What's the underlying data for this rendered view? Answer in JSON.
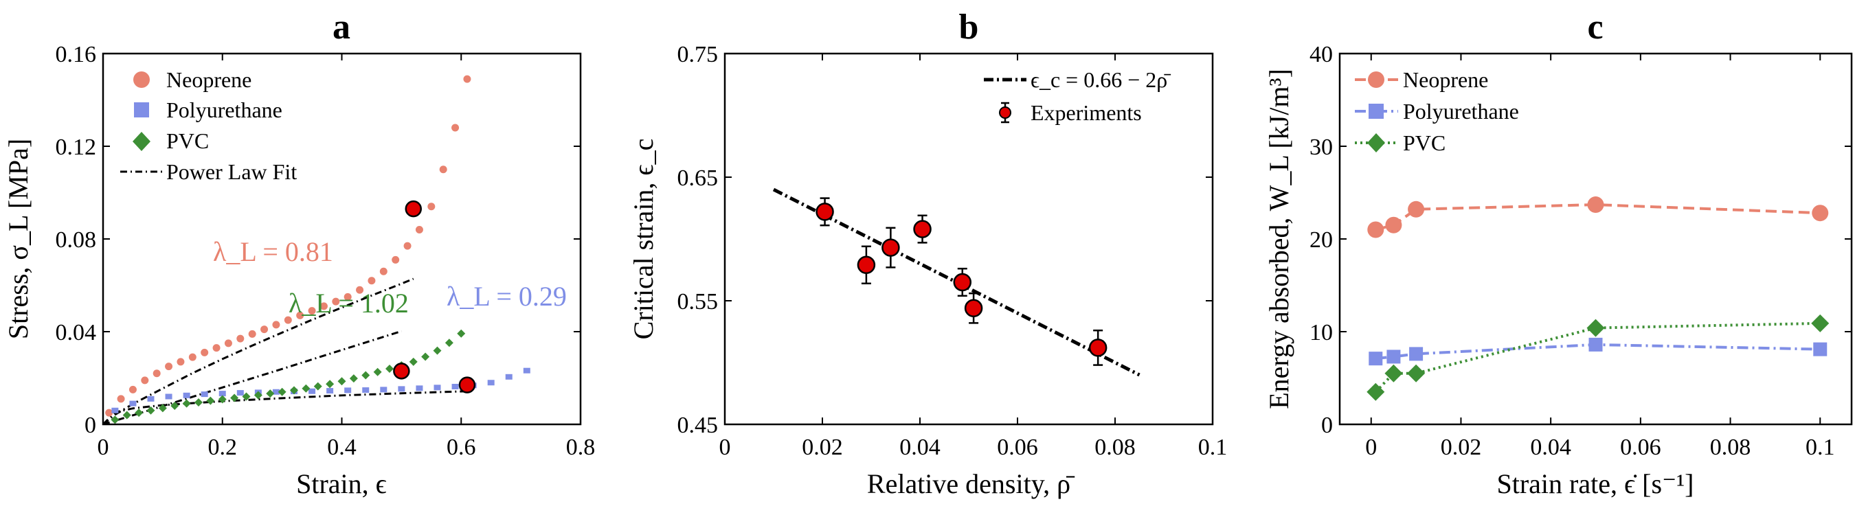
{
  "panels": {
    "a": {
      "title": "a",
      "xlabel": "Strain, ϵ",
      "ylabel": "Stress, σ_L [MPa]",
      "xticks": [
        "0",
        "0.2",
        "0.4",
        "0.6",
        "0.8"
      ],
      "yticks": [
        "0",
        "0.04",
        "0.08",
        "0.12",
        "0.16"
      ],
      "legend": [
        "Neoprene",
        "Polyurethane",
        "PVC",
        "Power Law Fit"
      ],
      "annotations": [
        "λ_L = 0.81",
        "λ_L = 0.29",
        "λ_L = 1.02"
      ]
    },
    "b": {
      "title": "b",
      "xlabel": "Relative density, ρ̄",
      "ylabel": "Critical strain, ϵ_c",
      "xticks": [
        "0",
        "0.02",
        "0.04",
        "0.06",
        "0.08",
        "0.1"
      ],
      "yticks": [
        "0.45",
        "0.55",
        "0.65",
        "0.75"
      ],
      "legend": [
        "ϵ_c = 0.66 − 2ρ̄",
        "Experiments"
      ]
    },
    "c": {
      "title": "c",
      "xlabel": "Strain rate, ϵ̇ [s⁻¹]",
      "ylabel": "Energy absorbed, W_L [kJ/m³]",
      "xticks": [
        "0",
        "0.02",
        "0.04",
        "0.06",
        "0.08",
        "0.1"
      ],
      "yticks": [
        "0",
        "10",
        "20",
        "30",
        "40"
      ],
      "legend": [
        "Neoprene",
        "Polyurethane",
        "PVC"
      ]
    }
  },
  "colors": {
    "neoprene": "#e8826f",
    "polyurethane": "#7f8ee6",
    "pvc": "#3d8f35",
    "fit": "#000000",
    "experiments": "#e00000"
  },
  "chart_data": [
    {
      "type": "scatter",
      "title": "a",
      "xlabel": "Strain, ϵ",
      "ylabel": "Stress, σ_L [MPa]",
      "xlim": [
        0,
        0.8
      ],
      "ylim": [
        0,
        0.16
      ],
      "legend_position": "top-left",
      "series": [
        {
          "name": "Neoprene",
          "marker": "circle",
          "x": [
            0.01,
            0.03,
            0.05,
            0.07,
            0.09,
            0.11,
            0.13,
            0.15,
            0.17,
            0.19,
            0.21,
            0.23,
            0.25,
            0.27,
            0.29,
            0.31,
            0.33,
            0.35,
            0.37,
            0.39,
            0.41,
            0.43,
            0.45,
            0.47,
            0.49,
            0.51,
            0.53,
            0.55,
            0.57,
            0.59,
            0.61
          ],
          "y": [
            0.005,
            0.011,
            0.015,
            0.019,
            0.022,
            0.025,
            0.027,
            0.029,
            0.031,
            0.033,
            0.035,
            0.037,
            0.039,
            0.041,
            0.043,
            0.045,
            0.047,
            0.049,
            0.051,
            0.053,
            0.055,
            0.058,
            0.062,
            0.066,
            0.071,
            0.077,
            0.084,
            0.094,
            0.11,
            0.128,
            0.149
          ],
          "highlight": {
            "x": 0.52,
            "y": 0.093
          }
        },
        {
          "name": "Polyurethane",
          "marker": "square",
          "x": [
            0.02,
            0.05,
            0.08,
            0.11,
            0.14,
            0.17,
            0.2,
            0.23,
            0.26,
            0.29,
            0.32,
            0.35,
            0.38,
            0.41,
            0.44,
            0.47,
            0.5,
            0.53,
            0.56,
            0.59,
            0.62,
            0.65,
            0.68,
            0.71
          ],
          "y": [
            0.006,
            0.009,
            0.011,
            0.012,
            0.0125,
            0.013,
            0.0133,
            0.0136,
            0.0138,
            0.014,
            0.0142,
            0.0143,
            0.0145,
            0.0147,
            0.0148,
            0.015,
            0.0153,
            0.0156,
            0.0159,
            0.0163,
            0.0168,
            0.018,
            0.0205,
            0.0232
          ],
          "highlight": {
            "x": 0.61,
            "y": 0.017
          }
        },
        {
          "name": "PVC",
          "marker": "diamond",
          "x": [
            0.02,
            0.04,
            0.06,
            0.08,
            0.1,
            0.12,
            0.14,
            0.16,
            0.18,
            0.2,
            0.22,
            0.24,
            0.26,
            0.28,
            0.3,
            0.32,
            0.34,
            0.36,
            0.38,
            0.4,
            0.42,
            0.44,
            0.46,
            0.48,
            0.5,
            0.52,
            0.54,
            0.56,
            0.58,
            0.6
          ],
          "y": [
            0.002,
            0.004,
            0.005,
            0.006,
            0.007,
            0.008,
            0.009,
            0.0095,
            0.0102,
            0.0108,
            0.0114,
            0.012,
            0.0126,
            0.0133,
            0.014,
            0.0147,
            0.0155,
            0.0164,
            0.0174,
            0.0186,
            0.0198,
            0.0212,
            0.0226,
            0.024,
            0.0255,
            0.027,
            0.0292,
            0.0318,
            0.0352,
            0.0392
          ],
          "highlight": {
            "x": 0.5,
            "y": 0.023
          }
        },
        {
          "name": "Power Law Fit",
          "style": "dash-dot",
          "curves": [
            {
              "x": [
                0.0,
                0.02,
                0.05,
                0.1,
                0.15,
                0.2,
                0.25,
                0.3,
                0.35,
                0.4,
                0.45,
                0.5,
                0.52
              ],
              "y": [
                0.0,
                0.0042,
                0.0088,
                0.0155,
                0.0221,
                0.0282,
                0.034,
                0.0396,
                0.0451,
                0.0504,
                0.0556,
                0.0607,
                0.0628
              ]
            },
            {
              "x": [
                0.0,
                0.02,
                0.05,
                0.1,
                0.2,
                0.3,
                0.4,
                0.5,
                0.61
              ],
              "y": [
                0.0,
                0.0052,
                0.0069,
                0.0083,
                0.01,
                0.0113,
                0.0125,
                0.0134,
                0.0143
              ]
            },
            {
              "x": [
                0.0,
                0.05,
                0.1,
                0.2,
                0.3,
                0.4,
                0.5
              ],
              "y": [
                0.0,
                0.0039,
                0.0079,
                0.0159,
                0.0239,
                0.0321,
                0.0402
              ]
            }
          ]
        }
      ]
    },
    {
      "type": "scatter",
      "title": "b",
      "xlabel": "Relative density, ρ̄",
      "ylabel": "Critical strain, ϵ_c",
      "xlim": [
        0,
        0.1
      ],
      "ylim": [
        0.45,
        0.75
      ],
      "legend_position": "top-right",
      "series": [
        {
          "name": "ϵ_c = 0.66 − 2ρ̄",
          "style": "dash-dot",
          "x": [
            0.01,
            0.085
          ],
          "y": [
            0.64,
            0.49
          ]
        },
        {
          "name": "Experiments",
          "x": [
            0.0205,
            0.029,
            0.034,
            0.0405,
            0.0487,
            0.051,
            0.0765
          ],
          "y": [
            0.622,
            0.579,
            0.593,
            0.608,
            0.565,
            0.544,
            0.512
          ],
          "error": [
            0.011,
            0.015,
            0.016,
            0.011,
            0.011,
            0.012,
            0.014
          ]
        }
      ]
    },
    {
      "type": "line",
      "title": "c",
      "xlabel": "Strain rate, ϵ̇ [s⁻¹]",
      "ylabel": "Energy absorbed, W_L [kJ/m³]",
      "xlim": [
        -0.007,
        0.107
      ],
      "ylim": [
        0,
        40
      ],
      "legend_position": "top-left",
      "x": [
        0.001,
        0.005,
        0.01,
        0.05,
        0.1
      ],
      "series": [
        {
          "name": "Neoprene",
          "marker": "circle",
          "style": "dashed",
          "values": [
            21.0,
            21.5,
            23.2,
            23.7,
            22.8
          ]
        },
        {
          "name": "Polyurethane",
          "marker": "square",
          "style": "dash-dot",
          "values": [
            7.1,
            7.3,
            7.6,
            8.6,
            8.1
          ]
        },
        {
          "name": "PVC",
          "marker": "diamond",
          "style": "dotted",
          "values": [
            3.5,
            5.5,
            5.5,
            10.4,
            10.9
          ]
        }
      ]
    }
  ]
}
